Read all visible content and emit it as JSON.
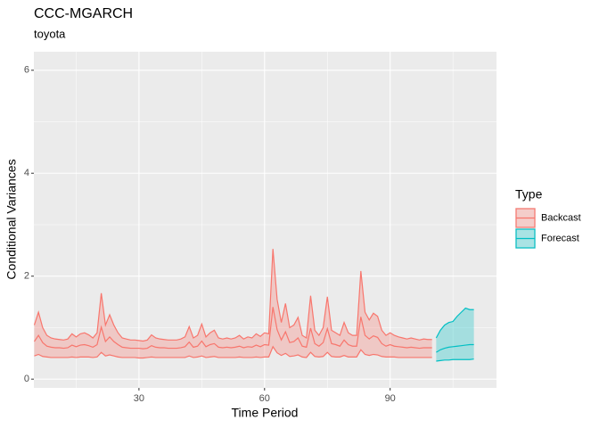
{
  "chart_data": {
    "type": "ribbon",
    "title": "CCC-MGARCH",
    "subtitle": "toyota",
    "x_label": "Time Period",
    "y_label": "Conditional Variances",
    "legend_title": "Type",
    "legend_position": "right",
    "xlim": [
      4.9,
      115.4
    ],
    "xticks": [
      30,
      60,
      90
    ],
    "ylim": [
      -0.17,
      6.36
    ],
    "yticks": [
      0,
      2,
      4,
      6
    ],
    "grid": true,
    "series": [
      {
        "name": "Backcast",
        "color": "#F8766D",
        "x": [
          5,
          6,
          7,
          8,
          9,
          10,
          11,
          12,
          13,
          14,
          15,
          16,
          17,
          18,
          19,
          20,
          21,
          22,
          23,
          24,
          25,
          26,
          27,
          28,
          29,
          30,
          31,
          32,
          33,
          34,
          35,
          36,
          37,
          38,
          39,
          40,
          41,
          42,
          43,
          44,
          45,
          46,
          47,
          48,
          49,
          50,
          51,
          52,
          53,
          54,
          55,
          56,
          57,
          58,
          59,
          60,
          61,
          62,
          63,
          64,
          65,
          66,
          67,
          68,
          69,
          70,
          71,
          72,
          73,
          74,
          75,
          76,
          77,
          78,
          79,
          80,
          81,
          82,
          83,
          84,
          85,
          86,
          87,
          88,
          89,
          90,
          91,
          92,
          93,
          94,
          95,
          96,
          97,
          98,
          99,
          100
        ],
        "values": [
          0.73,
          0.85,
          0.71,
          0.64,
          0.62,
          0.61,
          0.61,
          0.6,
          0.61,
          0.66,
          0.63,
          0.66,
          0.67,
          0.65,
          0.62,
          0.67,
          1.01,
          0.73,
          0.82,
          0.73,
          0.67,
          0.62,
          0.61,
          0.6,
          0.6,
          0.6,
          0.59,
          0.6,
          0.65,
          0.62,
          0.61,
          0.61,
          0.6,
          0.6,
          0.6,
          0.61,
          0.63,
          0.72,
          0.62,
          0.64,
          0.74,
          0.63,
          0.67,
          0.69,
          0.62,
          0.61,
          0.62,
          0.61,
          0.62,
          0.64,
          0.61,
          0.63,
          0.62,
          0.66,
          0.63,
          0.67,
          0.66,
          1.4,
          0.96,
          0.76,
          0.92,
          0.71,
          0.73,
          0.8,
          0.64,
          0.62,
          0.99,
          0.69,
          0.64,
          0.71,
          0.98,
          0.69,
          0.67,
          0.64,
          0.76,
          0.67,
          0.64,
          0.64,
          1.21,
          0.85,
          0.78,
          0.84,
          0.81,
          0.69,
          0.64,
          0.67,
          0.64,
          0.63,
          0.62,
          0.61,
          0.62,
          0.61,
          0.6,
          0.61,
          0.61,
          0.61
        ],
        "lower": [
          0.45,
          0.48,
          0.44,
          0.43,
          0.42,
          0.42,
          0.42,
          0.42,
          0.42,
          0.43,
          0.42,
          0.43,
          0.43,
          0.43,
          0.42,
          0.43,
          0.52,
          0.45,
          0.47,
          0.45,
          0.43,
          0.42,
          0.42,
          0.42,
          0.42,
          0.41,
          0.41,
          0.42,
          0.43,
          0.42,
          0.42,
          0.42,
          0.42,
          0.42,
          0.42,
          0.42,
          0.42,
          0.45,
          0.42,
          0.43,
          0.45,
          0.42,
          0.43,
          0.44,
          0.42,
          0.42,
          0.42,
          0.42,
          0.42,
          0.43,
          0.42,
          0.42,
          0.42,
          0.43,
          0.42,
          0.43,
          0.43,
          0.63,
          0.51,
          0.46,
          0.5,
          0.44,
          0.45,
          0.47,
          0.43,
          0.42,
          0.52,
          0.44,
          0.43,
          0.44,
          0.52,
          0.44,
          0.43,
          0.43,
          0.46,
          0.43,
          0.43,
          0.43,
          0.57,
          0.48,
          0.46,
          0.48,
          0.47,
          0.44,
          0.43,
          0.43,
          0.43,
          0.42,
          0.42,
          0.42,
          0.42,
          0.42,
          0.42,
          0.42,
          0.42,
          0.42
        ],
        "upper": [
          1.05,
          1.3,
          1.0,
          0.85,
          0.8,
          0.78,
          0.77,
          0.76,
          0.78,
          0.88,
          0.82,
          0.88,
          0.9,
          0.86,
          0.8,
          0.9,
          1.67,
          1.05,
          1.25,
          1.05,
          0.9,
          0.8,
          0.78,
          0.76,
          0.76,
          0.75,
          0.74,
          0.76,
          0.86,
          0.8,
          0.78,
          0.77,
          0.76,
          0.76,
          0.76,
          0.78,
          0.82,
          1.02,
          0.8,
          0.85,
          1.07,
          0.82,
          0.9,
          0.95,
          0.8,
          0.78,
          0.8,
          0.78,
          0.8,
          0.85,
          0.78,
          0.82,
          0.8,
          0.88,
          0.83,
          0.9,
          0.88,
          2.53,
          1.55,
          1.1,
          1.47,
          1.0,
          1.05,
          1.2,
          0.85,
          0.8,
          1.62,
          0.95,
          0.85,
          1.0,
          1.6,
          0.95,
          0.9,
          0.85,
          1.1,
          0.9,
          0.85,
          0.85,
          2.1,
          1.3,
          1.15,
          1.28,
          1.22,
          0.95,
          0.85,
          0.9,
          0.85,
          0.82,
          0.8,
          0.78,
          0.8,
          0.78,
          0.76,
          0.78,
          0.77,
          0.77
        ]
      },
      {
        "name": "Forecast",
        "color": "#00BFC4",
        "x": [
          101,
          102,
          103,
          104,
          105,
          106,
          107,
          108,
          109,
          110
        ],
        "values": [
          0.52,
          0.57,
          0.6,
          0.62,
          0.63,
          0.64,
          0.65,
          0.66,
          0.67,
          0.67
        ],
        "lower": [
          0.35,
          0.36,
          0.37,
          0.37,
          0.38,
          0.38,
          0.38,
          0.38,
          0.38,
          0.39
        ],
        "upper": [
          0.8,
          0.95,
          1.05,
          1.1,
          1.12,
          1.22,
          1.3,
          1.38,
          1.35,
          1.35
        ]
      }
    ]
  }
}
